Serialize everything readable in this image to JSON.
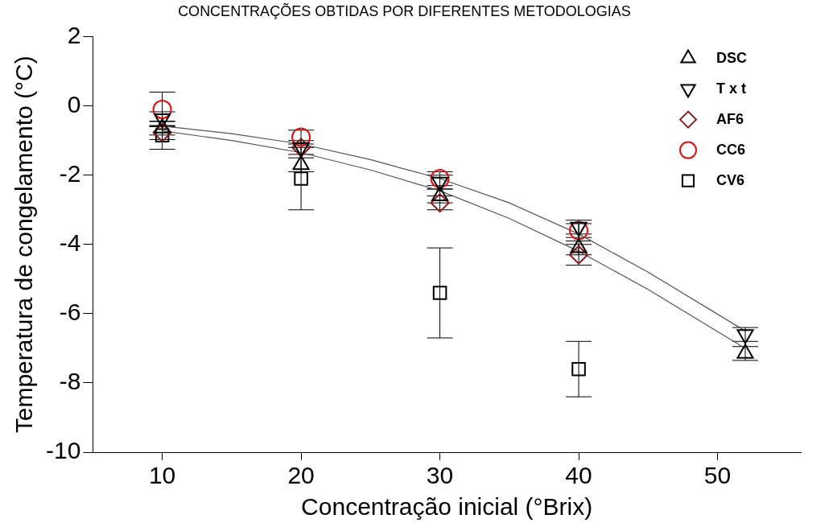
{
  "chart_data": {
    "type": "scatter",
    "title": "CONCENTRAÇÕES OBTIDAS POR DIFERENTES METODOLOGIAS",
    "xlabel": "Concentração inicial (°Brix)",
    "ylabel": "Temperatura de congelamento (°C)",
    "xlim": [
      5,
      56
    ],
    "xticks": [
      10,
      20,
      30,
      40,
      50
    ],
    "ylim": [
      -10,
      2
    ],
    "yticks": [
      -10,
      -8,
      -6,
      -4,
      -2,
      0,
      2
    ],
    "grid": false,
    "legend": "top right",
    "series": [
      {
        "name": "DSC",
        "color": "#000000",
        "marker": "triangle",
        "x": [
          10,
          20,
          30,
          40,
          52
        ],
        "values": [
          -0.64,
          -1.7,
          -2.6,
          -4.1,
          -7.15
        ],
        "errors": [
          0.2,
          0.2,
          0.2,
          0.2,
          0.2
        ]
      },
      {
        "name": "T x t",
        "color": "#000000",
        "marker": "triangle_down",
        "x": [
          10,
          20,
          30,
          40,
          52
        ],
        "values": [
          -0.37,
          -1.2,
          -2.2,
          -3.5,
          -6.6
        ],
        "errors": [
          0.2,
          0.2,
          0.2,
          0.2,
          0.2
        ]
      },
      {
        "name": "AF6",
        "color": "#8b1a1a",
        "marker": "diamond",
        "x": [
          10,
          20,
          30,
          40
        ],
        "values": [
          -0.77,
          -1.2,
          -2.8,
          -4.3
        ],
        "errors": [
          0.2,
          null,
          0.2,
          0.3
        ]
      },
      {
        "name": "CC6",
        "color": "#dd1111",
        "marker": "circle",
        "x": [
          10,
          20,
          30,
          40
        ],
        "values": [
          -0.1,
          -0.9,
          -2.1,
          -3.6
        ],
        "errors": [
          0.5,
          0.2,
          0.2,
          0.2
        ]
      },
      {
        "name": "CV6",
        "color": "#000000",
        "marker": "square",
        "x": [
          10,
          20,
          30,
          40
        ],
        "values": [
          -0.85,
          -2.1,
          -5.4,
          -7.6
        ],
        "errors": [
          0.4,
          0.9,
          1.3,
          0.8
        ]
      },
      {
        "type": "line",
        "color": "#555555",
        "marker": "none",
        "x": [
          10,
          15,
          20,
          25,
          30,
          35,
          40,
          45,
          52
        ],
        "values": [
          -0.58,
          -0.8,
          -1.1,
          -1.55,
          -2.1,
          -2.8,
          -3.7,
          -4.8,
          -6.5
        ]
      },
      {
        "type": "line",
        "color": "#555555",
        "marker": "none",
        "x": [
          10,
          15,
          20,
          25,
          30,
          35,
          40,
          45,
          52
        ],
        "values": [
          -0.72,
          -1.0,
          -1.35,
          -1.85,
          -2.45,
          -3.25,
          -4.2,
          -5.3,
          -7.0
        ]
      }
    ]
  }
}
